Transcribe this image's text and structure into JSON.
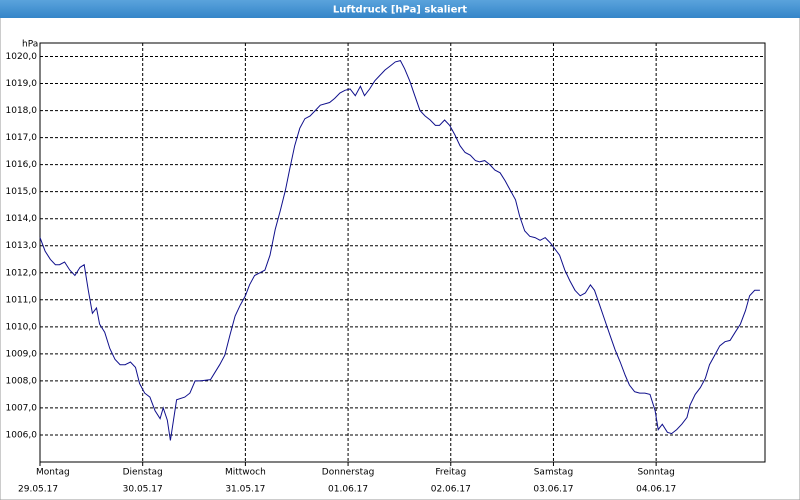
{
  "window_title": "Luftdruck [hPa] skaliert",
  "chart_data": {
    "type": "line",
    "y_unit": "hPa",
    "x": [
      0,
      0.05,
      0.1,
      0.15,
      0.19,
      0.24,
      0.29,
      0.34,
      0.39,
      0.43,
      0.47,
      0.51,
      0.55,
      0.58,
      0.63,
      0.68,
      0.73,
      0.78,
      0.83,
      0.88,
      0.93,
      0.97,
      1.02,
      1.07,
      1.12,
      1.17,
      1.2,
      1.24,
      1.27,
      1.3,
      1.33,
      1.41,
      1.46,
      1.51,
      1.56,
      1.66,
      1.75,
      1.8,
      1.85,
      1.9,
      1.95,
      2.0,
      2.04,
      2.09,
      2.14,
      2.19,
      2.24,
      2.29,
      2.34,
      2.39,
      2.43,
      2.48,
      2.53,
      2.58,
      2.63,
      2.68,
      2.73,
      2.82,
      2.87,
      2.92,
      2.97,
      3.02,
      3.07,
      3.12,
      3.16,
      3.21,
      3.26,
      3.31,
      3.36,
      3.41,
      3.46,
      3.51,
      3.55,
      3.6,
      3.65,
      3.7,
      3.75,
      3.8,
      3.85,
      3.89,
      3.94,
      3.99,
      4.04,
      4.09,
      4.14,
      4.19,
      4.24,
      4.28,
      4.33,
      4.38,
      4.43,
      4.48,
      4.53,
      4.58,
      4.63,
      4.67,
      4.72,
      4.77,
      4.82,
      4.87,
      4.92,
      4.97,
      5.01,
      5.06,
      5.11,
      5.16,
      5.21,
      5.26,
      5.31,
      5.36,
      5.4,
      5.45,
      5.5,
      5.55,
      5.6,
      5.65,
      5.7,
      5.74,
      5.79,
      5.84,
      5.89,
      5.94,
      5.99,
      6.02,
      6.06,
      6.11,
      6.15,
      6.2,
      6.25,
      6.3,
      6.33,
      6.38,
      6.43,
      6.48,
      6.52,
      6.57,
      6.62,
      6.67,
      6.72,
      6.77,
      6.82,
      6.87,
      6.91,
      6.96,
      7.01
    ],
    "series": [
      {
        "name": "Luftdruck",
        "color": "#10108c",
        "values": [
          1013.3,
          1012.8,
          1012.5,
          1012.3,
          1012.3,
          1012.4,
          1012.1,
          1011.9,
          1012.2,
          1012.3,
          1011.35,
          1010.5,
          1010.7,
          1010.1,
          1009.8,
          1009.2,
          1008.8,
          1008.6,
          1008.6,
          1008.7,
          1008.5,
          1007.9,
          1007.55,
          1007.4,
          1006.9,
          1006.6,
          1007.0,
          1006.55,
          1005.8,
          1006.55,
          1007.3,
          1007.4,
          1007.55,
          1008.0,
          1008.0,
          1008.05,
          1008.6,
          1008.95,
          1009.7,
          1010.4,
          1010.8,
          1011.15,
          1011.55,
          1011.9,
          1012.0,
          1012.1,
          1012.65,
          1013.6,
          1014.3,
          1015.05,
          1015.8,
          1016.7,
          1017.35,
          1017.7,
          1017.8,
          1018.0,
          1018.2,
          1018.3,
          1018.45,
          1018.65,
          1018.75,
          1018.8,
          1018.55,
          1018.9,
          1018.55,
          1018.8,
          1019.1,
          1019.3,
          1019.5,
          1019.65,
          1019.8,
          1019.85,
          1019.55,
          1019.1,
          1018.55,
          1018.0,
          1017.8,
          1017.65,
          1017.45,
          1017.45,
          1017.65,
          1017.45,
          1017.1,
          1016.7,
          1016.45,
          1016.35,
          1016.15,
          1016.1,
          1016.15,
          1016.0,
          1015.8,
          1015.7,
          1015.4,
          1015.05,
          1014.7,
          1014.1,
          1013.55,
          1013.35,
          1013.3,
          1013.2,
          1013.3,
          1013.1,
          1012.9,
          1012.65,
          1012.1,
          1011.7,
          1011.35,
          1011.15,
          1011.25,
          1011.55,
          1011.35,
          1010.8,
          1010.25,
          1009.7,
          1009.15,
          1008.7,
          1008.2,
          1007.85,
          1007.6,
          1007.55,
          1007.55,
          1007.5,
          1006.9,
          1006.2,
          1006.4,
          1006.1,
          1006.05,
          1006.2,
          1006.4,
          1006.65,
          1007.1,
          1007.5,
          1007.75,
          1008.1,
          1008.6,
          1008.95,
          1009.3,
          1009.45,
          1009.5,
          1009.8,
          1010.1,
          1010.6,
          1011.15,
          1011.35,
          1011.35
        ]
      }
    ],
    "xlim": [
      0,
      7.06
    ],
    "xticks": [
      {
        "value": 0,
        "label": "Montag",
        "date": "29.05.17"
      },
      {
        "value": 1,
        "label": "Dienstag",
        "date": "30.05.17"
      },
      {
        "value": 2,
        "label": "Mittwoch",
        "date": "31.05.17"
      },
      {
        "value": 3,
        "label": "Donnerstag",
        "date": "01.06.17"
      },
      {
        "value": 4,
        "label": "Freitag",
        "date": "02.06.17"
      },
      {
        "value": 5,
        "label": "Samstag",
        "date": "03.06.17"
      },
      {
        "value": 6,
        "label": "Sonntag",
        "date": "04.06.17"
      }
    ],
    "ylim": [
      1005,
      1020.5
    ],
    "yticks": [
      {
        "value": 1006,
        "label": "1006,0"
      },
      {
        "value": 1007,
        "label": "1007,0"
      },
      {
        "value": 1008,
        "label": "1008,0"
      },
      {
        "value": 1009,
        "label": "1009,0"
      },
      {
        "value": 1010,
        "label": "1010,0"
      },
      {
        "value": 1011,
        "label": "1011,0"
      },
      {
        "value": 1012,
        "label": "1012,0"
      },
      {
        "value": 1013,
        "label": "1013,0"
      },
      {
        "value": 1014,
        "label": "1014,0"
      },
      {
        "value": 1015,
        "label": "1015,0"
      },
      {
        "value": 1016,
        "label": "1016,0"
      },
      {
        "value": 1017,
        "label": "1017,0"
      },
      {
        "value": 1018,
        "label": "1018,0"
      },
      {
        "value": 1019,
        "label": "1019,0"
      },
      {
        "value": 1020,
        "label": "1020,0"
      }
    ],
    "grid": true
  }
}
